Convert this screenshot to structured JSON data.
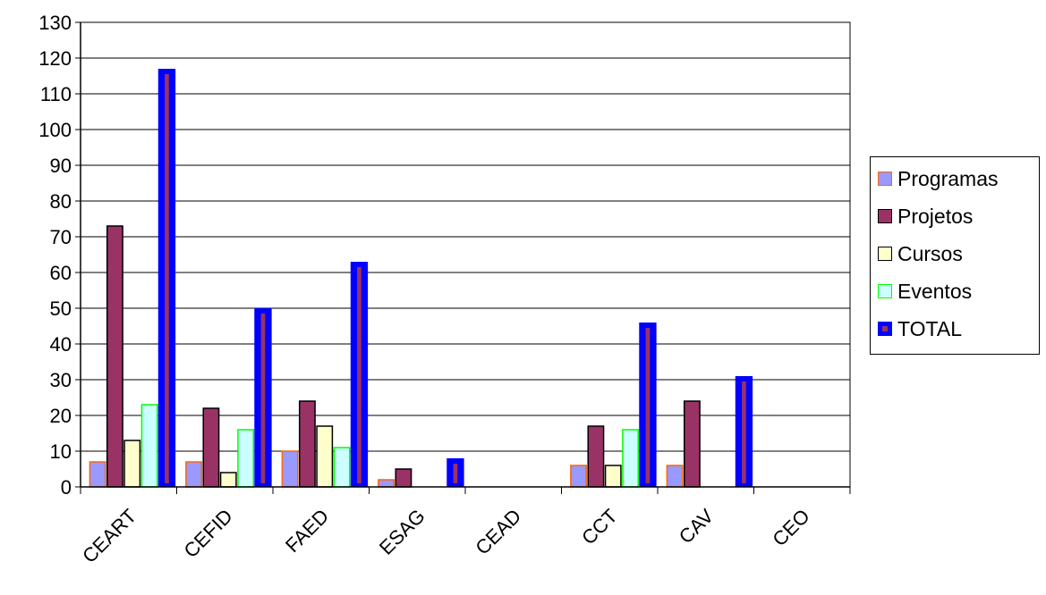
{
  "chart_data": {
    "type": "bar",
    "categories": [
      "CEART",
      "CEFID",
      "FAED",
      "ESAG",
      "CEAD",
      "CCT",
      "CAV",
      "CEO"
    ],
    "series": [
      {
        "name": "Programas",
        "values": [
          7,
          7,
          10,
          2,
          0,
          6,
          6,
          0
        ],
        "fill": "#9999ff",
        "stroke": "#ff6600"
      },
      {
        "name": "Projetos",
        "values": [
          73,
          22,
          24,
          5,
          0,
          17,
          24,
          0
        ],
        "fill": "#993366",
        "stroke": "#000000"
      },
      {
        "name": "Cursos",
        "values": [
          13,
          4,
          17,
          0,
          0,
          6,
          0,
          0
        ],
        "fill": "#ffffcc",
        "stroke": "#000000"
      },
      {
        "name": "Eventos",
        "values": [
          23,
          16,
          11,
          0,
          0,
          16,
          0,
          0
        ],
        "fill": "#ccffff",
        "stroke": "#00ff00"
      },
      {
        "name": "TOTAL",
        "values": [
          117,
          50,
          63,
          8,
          0,
          46,
          31,
          0
        ],
        "fill": "#993366",
        "stroke": "#0000ff"
      }
    ],
    "ylim": [
      0,
      130
    ],
    "yticks": [
      0,
      10,
      20,
      30,
      40,
      50,
      60,
      70,
      80,
      90,
      100,
      110,
      120,
      130
    ],
    "grid": true,
    "legend_position": "right"
  }
}
